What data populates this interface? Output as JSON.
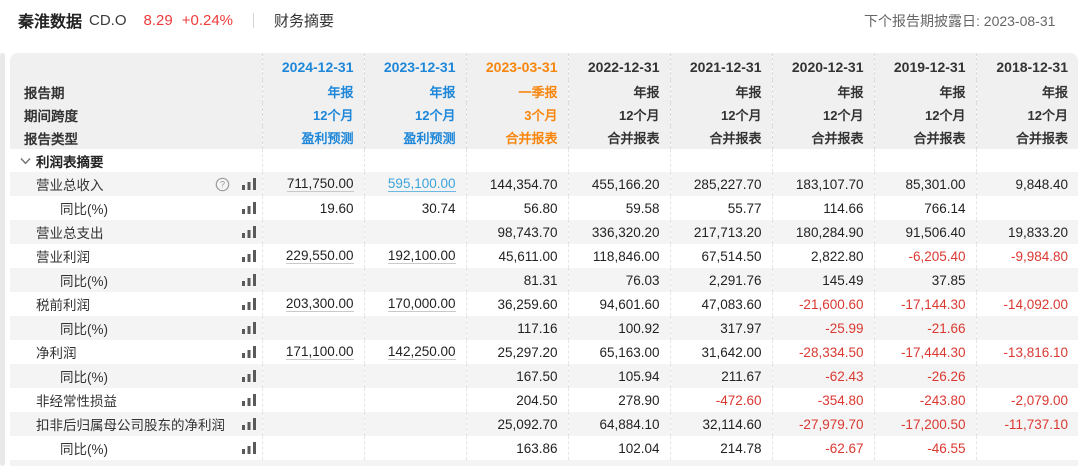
{
  "toolbar": {
    "stock_name": "秦淮数据",
    "ticker": "CD.O",
    "price": "8.29",
    "change_pct": "+0.24%",
    "nav_label": "财务摘要",
    "next_report": "下个报告期披露日: 2023-08-31"
  },
  "colors": {
    "forecast_blue": "#1e87d9",
    "quarter_orange": "#f8860d",
    "negative_red": "#da3831",
    "quote_red": "#ee3b3b",
    "link_blue": "#3ba3da",
    "header_bg": "#f0f0f0",
    "stripe_bg": "#f4f4f4"
  },
  "icons": {
    "help": "question-circle-icon",
    "bars": "bar-chart-icon",
    "chevron": "chevron-down-icon"
  },
  "table": {
    "header_row_labels": [
      "报告期",
      "期间跨度",
      "报告类型"
    ],
    "columns": [
      {
        "date": "2024-12-31",
        "period": "年报",
        "span": "12个月",
        "rtype": "盈利预测",
        "theme": "blue"
      },
      {
        "date": "2023-12-31",
        "period": "年报",
        "span": "12个月",
        "rtype": "盈利预测",
        "theme": "blue"
      },
      {
        "date": "2023-03-31",
        "period": "一季报",
        "span": "3个月",
        "rtype": "合并报表",
        "theme": "orange"
      },
      {
        "date": "2022-12-31",
        "period": "年报",
        "span": "12个月",
        "rtype": "合并报表",
        "theme": "dark"
      },
      {
        "date": "2021-12-31",
        "period": "年报",
        "span": "12个月",
        "rtype": "合并报表",
        "theme": "dark"
      },
      {
        "date": "2020-12-31",
        "period": "年报",
        "span": "12个月",
        "rtype": "合并报表",
        "theme": "dark"
      },
      {
        "date": "2019-12-31",
        "period": "年报",
        "span": "12个月",
        "rtype": "合并报表",
        "theme": "dark"
      },
      {
        "date": "2018-12-31",
        "period": "年报",
        "span": "12个月",
        "rtype": "合并报表",
        "theme": "dark"
      }
    ],
    "section_label": "利润表摘要",
    "rows": [
      {
        "label": "营业总收入",
        "indent": 1,
        "help": true,
        "cells": [
          {
            "v": "711,750.00",
            "est": true
          },
          {
            "v": "595,100.00",
            "est": true,
            "link": true
          },
          {
            "v": "144,354.70"
          },
          {
            "v": "455,166.20"
          },
          {
            "v": "285,227.70"
          },
          {
            "v": "183,107.70"
          },
          {
            "v": "85,301.00"
          },
          {
            "v": "9,848.40"
          }
        ]
      },
      {
        "label": "同比(%)",
        "indent": 2,
        "cells": [
          {
            "v": "19.60"
          },
          {
            "v": "30.74"
          },
          {
            "v": "56.80"
          },
          {
            "v": "59.58"
          },
          {
            "v": "55.77"
          },
          {
            "v": "114.66"
          },
          {
            "v": "766.14"
          },
          {
            "v": ""
          }
        ]
      },
      {
        "label": "营业总支出",
        "indent": 1,
        "cells": [
          {
            "v": ""
          },
          {
            "v": ""
          },
          {
            "v": "98,743.70"
          },
          {
            "v": "336,320.20"
          },
          {
            "v": "217,713.20"
          },
          {
            "v": "180,284.90"
          },
          {
            "v": "91,506.40"
          },
          {
            "v": "19,833.20"
          }
        ]
      },
      {
        "label": "营业利润",
        "indent": 1,
        "cells": [
          {
            "v": "229,550.00",
            "est": true
          },
          {
            "v": "192,100.00",
            "est": true
          },
          {
            "v": "45,611.00"
          },
          {
            "v": "118,846.00"
          },
          {
            "v": "67,514.50"
          },
          {
            "v": "2,822.80"
          },
          {
            "v": "-6,205.40"
          },
          {
            "v": "-9,984.80"
          }
        ]
      },
      {
        "label": "同比(%)",
        "indent": 2,
        "cells": [
          {
            "v": ""
          },
          {
            "v": ""
          },
          {
            "v": "81.31"
          },
          {
            "v": "76.03"
          },
          {
            "v": "2,291.76"
          },
          {
            "v": "145.49"
          },
          {
            "v": "37.85"
          },
          {
            "v": ""
          }
        ]
      },
      {
        "label": "税前利润",
        "indent": 1,
        "cells": [
          {
            "v": "203,300.00",
            "est": true
          },
          {
            "v": "170,000.00",
            "est": true
          },
          {
            "v": "36,259.60"
          },
          {
            "v": "94,601.60"
          },
          {
            "v": "47,083.60"
          },
          {
            "v": "-21,600.60"
          },
          {
            "v": "-17,144.30"
          },
          {
            "v": "-14,092.00"
          }
        ]
      },
      {
        "label": "同比(%)",
        "indent": 2,
        "cells": [
          {
            "v": ""
          },
          {
            "v": ""
          },
          {
            "v": "117.16"
          },
          {
            "v": "100.92"
          },
          {
            "v": "317.97"
          },
          {
            "v": "-25.99"
          },
          {
            "v": "-21.66"
          },
          {
            "v": ""
          }
        ]
      },
      {
        "label": "净利润",
        "indent": 1,
        "cells": [
          {
            "v": "171,100.00",
            "est": true
          },
          {
            "v": "142,250.00",
            "est": true
          },
          {
            "v": "25,297.20"
          },
          {
            "v": "65,163.00"
          },
          {
            "v": "31,642.00"
          },
          {
            "v": "-28,334.50"
          },
          {
            "v": "-17,444.30"
          },
          {
            "v": "-13,816.10"
          }
        ]
      },
      {
        "label": "同比(%)",
        "indent": 2,
        "cells": [
          {
            "v": ""
          },
          {
            "v": ""
          },
          {
            "v": "167.50"
          },
          {
            "v": "105.94"
          },
          {
            "v": "211.67"
          },
          {
            "v": "-62.43"
          },
          {
            "v": "-26.26"
          },
          {
            "v": ""
          }
        ]
      },
      {
        "label": "非经常性损益",
        "indent": 1,
        "cells": [
          {
            "v": ""
          },
          {
            "v": ""
          },
          {
            "v": "204.50"
          },
          {
            "v": "278.90"
          },
          {
            "v": "-472.60"
          },
          {
            "v": "-354.80"
          },
          {
            "v": "-243.80"
          },
          {
            "v": "-2,079.00"
          }
        ]
      },
      {
        "label": "扣非后归属母公司股东的净利润",
        "indent": 1,
        "cells": [
          {
            "v": ""
          },
          {
            "v": ""
          },
          {
            "v": "25,092.70"
          },
          {
            "v": "64,884.10"
          },
          {
            "v": "32,114.60"
          },
          {
            "v": "-27,979.70"
          },
          {
            "v": "-17,200.50"
          },
          {
            "v": "-11,737.10"
          }
        ]
      },
      {
        "label": "同比(%)",
        "indent": 2,
        "cells": [
          {
            "v": ""
          },
          {
            "v": ""
          },
          {
            "v": "163.86"
          },
          {
            "v": "102.04"
          },
          {
            "v": "214.78"
          },
          {
            "v": "-62.67"
          },
          {
            "v": "-46.55"
          },
          {
            "v": ""
          }
        ]
      }
    ]
  }
}
